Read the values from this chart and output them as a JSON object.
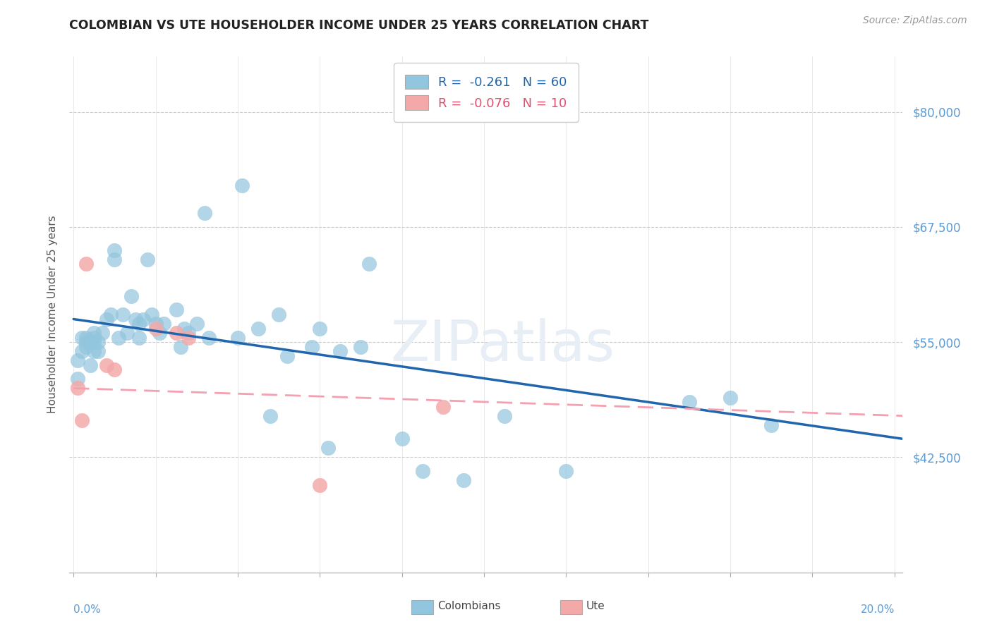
{
  "title": "COLOMBIAN VS UTE HOUSEHOLDER INCOME UNDER 25 YEARS CORRELATION CHART",
  "source": "Source: ZipAtlas.com",
  "ylabel": "Householder Income Under 25 years",
  "ytick_labels": [
    "$42,500",
    "$55,000",
    "$67,500",
    "$80,000"
  ],
  "ytick_values": [
    42500,
    55000,
    67500,
    80000
  ],
  "ymin": 30000,
  "ymax": 86000,
  "xmin": -0.001,
  "xmax": 0.202,
  "legend_colombians": "R =  -0.261   N = 60",
  "legend_ute": "R =  -0.076   N = 10",
  "colombian_color": "#92c5de",
  "ute_color": "#f4a9a9",
  "trendline_colombian_color": "#2166ac",
  "trendline_ute_color": "#f4a0b0",
  "watermark": "ZIPatlas",
  "colombians_x": [
    0.001,
    0.001,
    0.002,
    0.002,
    0.003,
    0.003,
    0.003,
    0.004,
    0.004,
    0.005,
    0.005,
    0.005,
    0.005,
    0.006,
    0.006,
    0.007,
    0.008,
    0.009,
    0.01,
    0.01,
    0.011,
    0.012,
    0.013,
    0.014,
    0.015,
    0.016,
    0.016,
    0.017,
    0.018,
    0.019,
    0.02,
    0.021,
    0.022,
    0.025,
    0.026,
    0.027,
    0.028,
    0.03,
    0.032,
    0.033,
    0.04,
    0.041,
    0.045,
    0.048,
    0.05,
    0.052,
    0.058,
    0.06,
    0.062,
    0.065,
    0.07,
    0.072,
    0.08,
    0.085,
    0.095,
    0.105,
    0.12,
    0.15,
    0.16,
    0.17
  ],
  "colombians_y": [
    53000,
    51000,
    55500,
    54000,
    55000,
    54500,
    55500,
    52500,
    55000,
    55500,
    55000,
    54000,
    56000,
    54000,
    55000,
    56000,
    57500,
    58000,
    64000,
    65000,
    55500,
    58000,
    56000,
    60000,
    57500,
    55500,
    57000,
    57500,
    64000,
    58000,
    57000,
    56000,
    57000,
    58500,
    54500,
    56500,
    56000,
    57000,
    69000,
    55500,
    55500,
    72000,
    56500,
    47000,
    58000,
    53500,
    54500,
    56500,
    43500,
    54000,
    54500,
    63500,
    44500,
    41000,
    40000,
    47000,
    41000,
    48500,
    49000,
    46000
  ],
  "ute_x": [
    0.001,
    0.002,
    0.003,
    0.008,
    0.01,
    0.02,
    0.025,
    0.028,
    0.06,
    0.09
  ],
  "ute_y": [
    50000,
    46500,
    63500,
    52500,
    52000,
    56500,
    56000,
    55500,
    39500,
    48000
  ],
  "colombian_trend_x": [
    0.0,
    0.202
  ],
  "colombian_trend_y": [
    57500,
    44500
  ],
  "ute_trend_x": [
    0.0,
    0.202
  ],
  "ute_trend_y": [
    50000,
    47000
  ]
}
